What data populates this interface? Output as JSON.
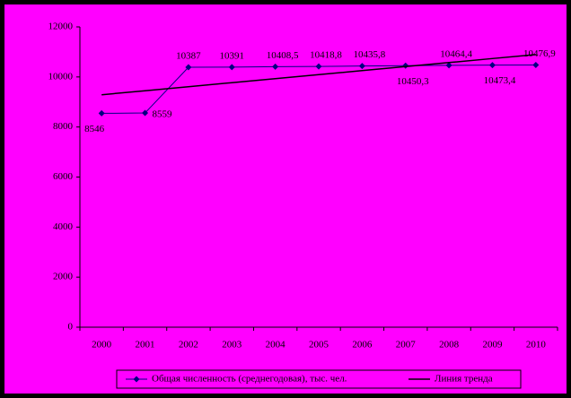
{
  "chart_data": {
    "type": "line",
    "categories": [
      "2000",
      "2001",
      "2002",
      "2003",
      "2004",
      "2005",
      "2006",
      "2007",
      "2008",
      "2009",
      "2010"
    ],
    "series": [
      {
        "name": "Общая численность (среднегодовая), тыс. чел.",
        "color": "#000080",
        "values": [
          8546,
          8559,
          10387,
          10391,
          10408.5,
          10418.8,
          10435.8,
          10450.3,
          10464.4,
          10473.4,
          10476.9
        ],
        "value_labels": [
          "8546",
          "8559",
          "10387",
          "10391",
          "10408,5",
          "10418,8",
          "10435,8",
          "10450,3",
          "10464,4",
          "10473,4",
          "10476,9"
        ]
      },
      {
        "name": "Линия тренда",
        "color": "#000000",
        "values": [
          9288,
          9449,
          9610,
          9770,
          9931,
          10092,
          10253,
          10414,
          10574,
          10735,
          10896
        ]
      }
    ],
    "ylim": [
      0,
      12000
    ],
    "yticks": [
      0,
      2000,
      4000,
      6000,
      8000,
      10000,
      12000
    ],
    "legend": "bottom"
  }
}
